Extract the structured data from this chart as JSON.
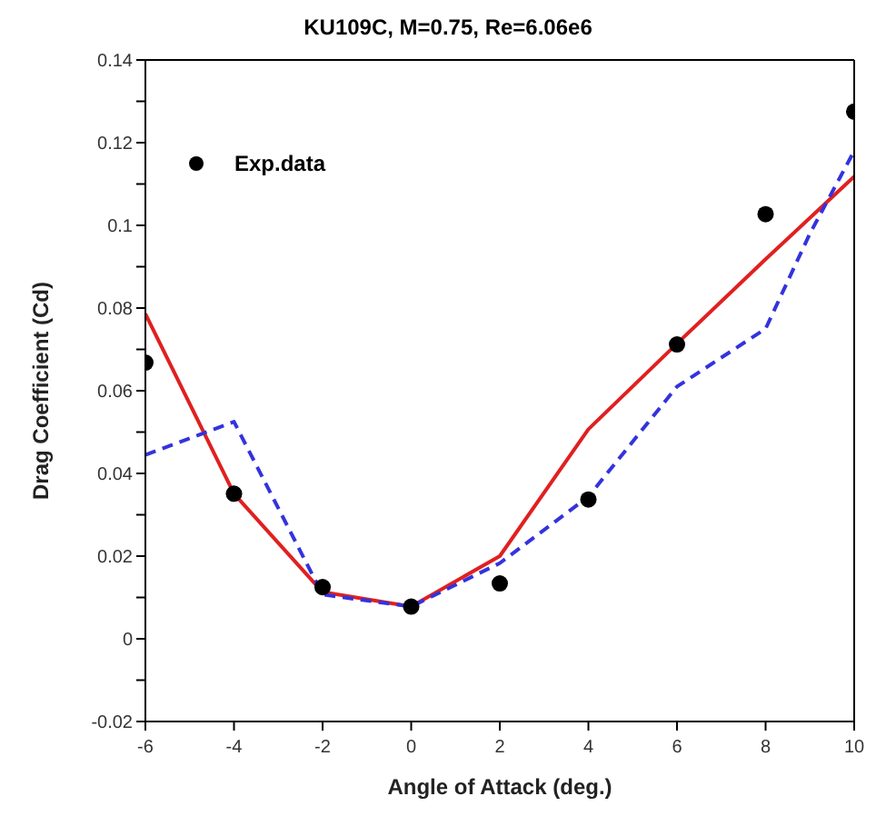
{
  "chart_data": {
    "type": "line",
    "title": "KU109C, M=0.75, Re=6.06e6",
    "xlabel": "Angle of Attack (deg.)",
    "ylabel": "Drag Coefficient (Cd)",
    "x": [
      -6,
      -4,
      -2,
      0,
      2,
      4,
      6,
      8,
      10
    ],
    "series": [
      {
        "color": "#e02020",
        "line_style": "solid",
        "marker": "none",
        "values": [
          0.0786,
          0.0351,
          0.0113,
          0.0078,
          0.02,
          0.0507,
          0.0714,
          0.0918,
          0.1118
        ]
      },
      {
        "color": "#3333dd",
        "line_style": "dashed",
        "marker": "none",
        "x": [
          -6,
          -4,
          -2,
          0,
          2,
          4,
          6,
          8,
          9,
          10
        ],
        "values": [
          0.0445,
          0.0525,
          0.0107,
          0.0078,
          0.0183,
          0.0344,
          0.061,
          0.075,
          0.098,
          0.118
        ]
      },
      {
        "type": "scatter",
        "name": "Exp.data",
        "color": "#000000",
        "marker": "circle",
        "values": [
          0.0668,
          0.0351,
          0.0125,
          0.0078,
          0.0134,
          0.0337,
          0.0712,
          0.1027,
          0.1275
        ]
      }
    ],
    "xlim": [
      -6,
      10
    ],
    "xticks": [
      -6,
      -4,
      -2,
      0,
      2,
      4,
      6,
      8,
      10
    ],
    "ylim": [
      -0.02,
      0.14
    ],
    "yticks": [
      -0.02,
      {
        "value": -0.01,
        "label": null
      },
      0,
      {
        "value": 0.01,
        "label": null
      },
      0.02,
      {
        "value": 0.03,
        "label": null
      },
      0.04,
      {
        "value": 0.05,
        "label": null
      },
      0.06,
      {
        "value": 0.07,
        "label": null
      },
      0.08,
      {
        "value": 0.09,
        "label": null
      },
      {
        "value": 0.1,
        "label": "0.1"
      },
      {
        "value": 0.11,
        "label": null
      },
      0.12,
      {
        "value": 0.13,
        "label": null
      },
      0.14
    ],
    "grid": false,
    "legend": "top left"
  }
}
